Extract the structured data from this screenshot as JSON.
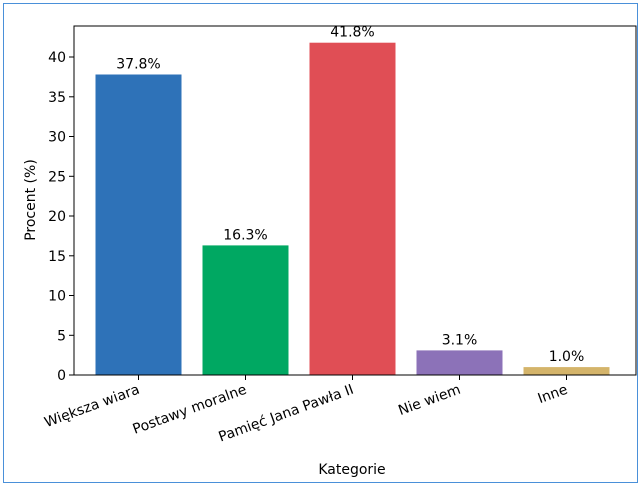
{
  "chart_data": {
    "type": "bar",
    "categories": [
      "Większa wiara",
      "Postawy moralne",
      "Pamięć Jana Pawła II",
      "Nie wiem",
      "Inne"
    ],
    "values": [
      37.8,
      16.3,
      41.8,
      3.1,
      1.0
    ],
    "data_labels": [
      "37.8%",
      "16.3%",
      "41.8%",
      "3.1%",
      "1.0%"
    ],
    "colors": [
      "#2e72b8",
      "#00a862",
      "#e04e55",
      "#8c72b8",
      "#d4b46a"
    ],
    "xlabel": "Kategorie",
    "ylabel": "Procent (%)",
    "ylim": [
      0,
      43.9
    ],
    "yticks": [
      0,
      5,
      10,
      15,
      20,
      25,
      30,
      35,
      40
    ],
    "grid": false,
    "legend": "none"
  }
}
